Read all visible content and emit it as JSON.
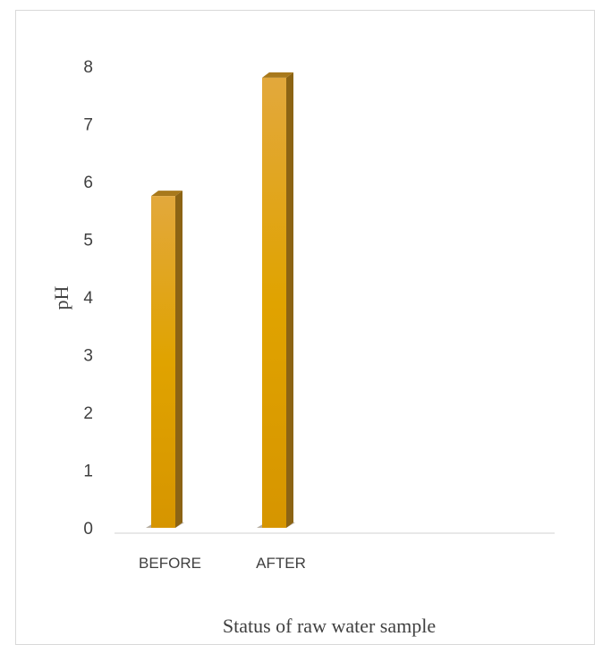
{
  "chart_data": {
    "type": "bar",
    "categories": [
      "BEFORE",
      "AFTER"
    ],
    "values": [
      5.75,
      7.8
    ],
    "xlabel": "Status of raw water sample",
    "ylabel": "pH",
    "ylim": [
      0,
      8
    ],
    "yticks": [
      0,
      1,
      2,
      3,
      4,
      5,
      6,
      7,
      8
    ],
    "grid": false,
    "style": "3d-column",
    "colors": {
      "bar_front_top": "#e2a83c",
      "bar_front_bottom": "#d99a00",
      "bar_side": "#8c6414",
      "bar_top": "#a8791c",
      "axis": "#d9d9d9",
      "text": "#404040"
    }
  }
}
